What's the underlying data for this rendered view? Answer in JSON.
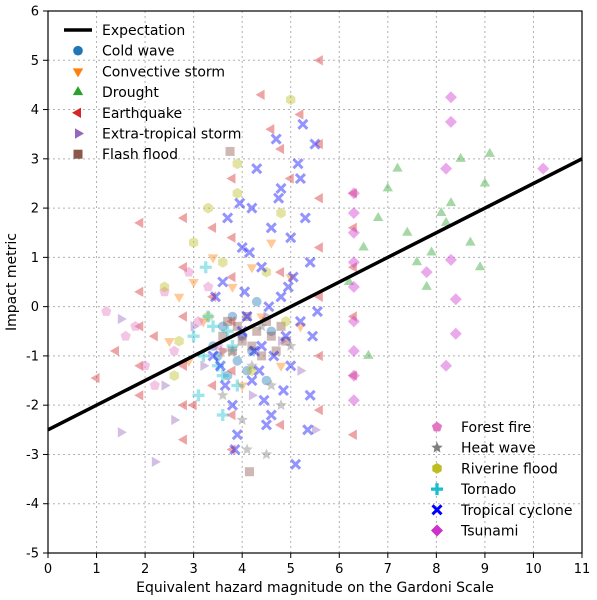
{
  "chart_data": {
    "type": "scatter",
    "xlabel": "Equivalent hazard magnitude on the Gardoni Scale",
    "ylabel": "Impact metric",
    "xlim": [
      0,
      11
    ],
    "ylim": [
      -5,
      6
    ],
    "xticks": [
      "0",
      "1",
      "2",
      "3",
      "4",
      "5",
      "6",
      "7",
      "8",
      "9",
      "10",
      "11"
    ],
    "yticks": [
      "-5",
      "-4",
      "-3",
      "-2",
      "-1",
      "0",
      "1",
      "2",
      "3",
      "4",
      "5",
      "6"
    ],
    "grid": true,
    "expectation_line": {
      "name": "Expectation",
      "color": "#000000",
      "x": [
        0,
        11
      ],
      "y": [
        -2.5,
        3.0
      ]
    },
    "legend_top_left": [
      {
        "name": "Expectation",
        "marker": "line",
        "color": "#000000"
      },
      {
        "name": "Cold wave",
        "marker": "circle",
        "color": "#1f77b4"
      },
      {
        "name": "Convective storm",
        "marker": "triangle-down",
        "color": "#ff7f0e"
      },
      {
        "name": "Drought",
        "marker": "triangle-up",
        "color": "#2ca02c"
      },
      {
        "name": "Earthquake",
        "marker": "triangle-left",
        "color": "#d62728"
      },
      {
        "name": "Extra-tropical storm",
        "marker": "triangle-right",
        "color": "#9467bd"
      },
      {
        "name": "Flash flood",
        "marker": "square",
        "color": "#8c564b"
      }
    ],
    "legend_bottom_right": [
      {
        "name": "Forest fire",
        "marker": "pentagon",
        "color": "#e377c2"
      },
      {
        "name": "Heat wave",
        "marker": "star",
        "color": "#7f7f7f"
      },
      {
        "name": "Riverine flood",
        "marker": "hexagon",
        "color": "#bcbd22"
      },
      {
        "name": "Tornado",
        "marker": "plus",
        "color": "#17becf"
      },
      {
        "name": "Tropical cyclone",
        "marker": "x",
        "color": "#0000ff"
      },
      {
        "name": "Tsunami",
        "marker": "diamond",
        "color": "#cc33cc"
      }
    ],
    "series": [
      {
        "name": "Cold wave",
        "color": "#1f77b4",
        "marker": "circle",
        "x": [
          3.4,
          3.5,
          3.6,
          3.7,
          3.8,
          3.9,
          4.0,
          4.1,
          4.2,
          4.3,
          4.5,
          4.6
        ],
        "y": [
          -0.8,
          -1.0,
          -0.4,
          -1.4,
          -0.2,
          -1.1,
          -0.6,
          -1.3,
          -0.9,
          0.1,
          -1.5,
          -0.5
        ]
      },
      {
        "name": "Convective storm",
        "color": "#ff7f0e",
        "marker": "triangle-down",
        "x": [
          2.5,
          2.7,
          2.9,
          3.0,
          3.2,
          3.4,
          3.6,
          3.8,
          4.0,
          4.2,
          4.4,
          4.6,
          4.8,
          5.0,
          5.2
        ],
        "y": [
          -0.7,
          0.2,
          -1.1,
          0.5,
          -0.3,
          1.0,
          -0.9,
          0.4,
          -1.6,
          0.8,
          -0.2,
          1.3,
          -1.2,
          0.6,
          -0.4
        ]
      },
      {
        "name": "Drought",
        "color": "#2ca02c",
        "marker": "triangle-up",
        "x": [
          6.2,
          6.5,
          6.8,
          7.0,
          7.2,
          7.4,
          7.6,
          7.9,
          8.1,
          8.3,
          8.5,
          8.7,
          8.9,
          9.0,
          9.1,
          6.6,
          7.8,
          8.2
        ],
        "y": [
          0.5,
          1.2,
          1.8,
          2.4,
          2.8,
          1.5,
          0.9,
          1.1,
          1.9,
          2.1,
          3.0,
          1.3,
          0.8,
          2.5,
          3.1,
          -1.0,
          0.4,
          1.7
        ]
      },
      {
        "name": "Earthquake",
        "color": "#d62728",
        "marker": "triangle-left",
        "x": [
          1.0,
          1.4,
          1.9,
          1.9,
          1.9,
          1.9,
          1.9,
          2.8,
          2.8,
          2.8,
          2.8,
          2.8,
          2.8,
          3.4,
          3.4,
          3.4,
          3.8,
          3.8,
          3.8,
          3.8,
          3.8,
          3.8,
          3.8,
          4.8,
          4.8,
          4.8,
          5.2,
          5.6,
          5.6,
          5.6,
          5.6,
          5.6,
          5.6,
          5.6,
          4.4,
          4.6,
          5.0,
          3.0,
          2.2,
          6.3,
          6.3,
          6.3,
          6.3,
          6.3,
          6.3
        ],
        "y": [
          -1.45,
          -0.9,
          -1.8,
          -1.2,
          -0.4,
          0.3,
          1.7,
          -2.7,
          -2.0,
          -1.2,
          -0.2,
          0.8,
          1.8,
          -1.6,
          0.2,
          1.6,
          -2.9,
          -2.2,
          -1.3,
          -0.3,
          0.6,
          1.4,
          2.6,
          -2.4,
          0.7,
          3.2,
          3.9,
          -2.1,
          -1.0,
          0.2,
          1.2,
          2.2,
          3.3,
          5.0,
          4.3,
          3.6,
          2.6,
          -2.0,
          -0.6,
          -2.6,
          -1.4,
          -0.2,
          0.8,
          1.6,
          2.3
        ]
      },
      {
        "name": "Extra-tropical storm",
        "color": "#9467bd",
        "marker": "triangle-right",
        "x": [
          1.5,
          1.5,
          2.2,
          2.4,
          2.6,
          3.0,
          3.2,
          3.6,
          4.0,
          4.2,
          4.5,
          4.8,
          5.2,
          5.5
        ],
        "y": [
          -0.25,
          -2.55,
          -3.15,
          -1.6,
          -2.3,
          -0.4,
          -1.2,
          -0.9,
          -0.6,
          -1.8,
          -0.2,
          -0.7,
          -1.3,
          -2.5
        ]
      },
      {
        "name": "Flash flood",
        "color": "#8c564b",
        "marker": "square",
        "x": [
          3.6,
          3.7,
          3.8,
          3.9,
          4.0,
          4.1,
          4.2,
          4.3,
          4.4,
          4.5,
          4.6,
          4.7,
          4.8,
          4.9,
          3.75,
          4.15
        ],
        "y": [
          -0.6,
          -0.3,
          -0.9,
          -0.4,
          -0.7,
          -0.2,
          -0.8,
          -0.5,
          -1.0,
          -0.3,
          -0.6,
          -0.9,
          -0.4,
          -0.7,
          3.15,
          -3.35
        ]
      },
      {
        "name": "Forest fire",
        "color": "#e377c2",
        "marker": "pentagon",
        "x": [
          1.2,
          1.6,
          2.0,
          2.4,
          2.6,
          2.9,
          3.1,
          3.3,
          3.5,
          2.2,
          1.8
        ],
        "y": [
          -0.1,
          -0.6,
          -1.2,
          0.3,
          -0.9,
          0.7,
          -0.3,
          0.4,
          -0.8,
          -1.6,
          -0.4
        ]
      },
      {
        "name": "Heat wave",
        "color": "#7f7f7f",
        "marker": "star",
        "x": [
          3.6,
          3.8,
          4.0,
          4.2,
          4.4,
          4.6,
          4.8,
          5.0,
          4.1,
          4.5
        ],
        "y": [
          -1.8,
          -0.9,
          -2.3,
          -1.2,
          -0.4,
          -1.6,
          -2.0,
          -0.8,
          -2.9,
          -3.0
        ]
      },
      {
        "name": "Riverine flood",
        "color": "#bcbd22",
        "marker": "hexagon",
        "x": [
          2.4,
          2.7,
          3.0,
          3.3,
          3.6,
          3.9,
          4.2,
          4.5,
          4.8,
          5.0,
          3.3,
          4.9,
          2.6,
          3.9
        ],
        "y": [
          0.4,
          -0.7,
          1.3,
          -0.2,
          0.9,
          2.3,
          -1.3,
          0.7,
          1.9,
          4.2,
          2.0,
          -0.3,
          -1.4,
          2.9
        ]
      },
      {
        "name": "Tornado",
        "color": "#17becf",
        "marker": "plus",
        "x": [
          3.0,
          3.2,
          3.4,
          3.6,
          3.8,
          3.1,
          3.3,
          3.5,
          3.7,
          3.9,
          3.25,
          3.6
        ],
        "y": [
          -0.6,
          -1.0,
          -0.4,
          -1.4,
          -0.8,
          -1.8,
          -0.2,
          -1.2,
          -0.5,
          -1.6,
          0.8,
          -2.2
        ]
      },
      {
        "name": "Tropical cyclone",
        "color": "#0000ff",
        "marker": "x",
        "x": [
          3.4,
          3.6,
          3.8,
          4.0,
          4.0,
          4.2,
          4.2,
          4.4,
          4.4,
          4.6,
          4.6,
          4.8,
          4.8,
          5.0,
          5.0,
          5.2,
          5.2,
          5.4,
          5.4,
          5.5,
          3.9,
          4.5,
          5.1,
          4.3,
          4.7,
          5.3,
          3.7,
          4.1,
          4.9,
          5.45,
          4.05,
          4.65,
          5.05,
          4.35,
          3.85,
          4.75,
          5.25,
          4.55,
          3.65,
          5.35,
          4.25,
          4.85,
          3.95,
          4.15,
          5.15,
          4.45,
          5.55,
          4.95,
          3.55,
          3.45
        ],
        "y": [
          -1.0,
          0.5,
          -2.0,
          1.2,
          -0.5,
          2.0,
          -1.5,
          0.8,
          -0.8,
          1.6,
          -2.2,
          2.4,
          0.2,
          -1.2,
          1.4,
          -0.3,
          2.6,
          -1.8,
          0.9,
          3.3,
          -2.6,
          -2.4,
          -3.2,
          2.8,
          3.4,
          1.8,
          1.8,
          -0.2,
          -0.6,
          -0.6,
          0.3,
          -1.0,
          0.6,
          -1.3,
          -2.9,
          2.2,
          3.7,
          0.0,
          -1.6,
          -2.5,
          -0.9,
          -1.7,
          2.1,
          1.1,
          2.9,
          -1.9,
          -0.1,
          0.4,
          -1.2,
          0.2
        ]
      },
      {
        "name": "Tsunami",
        "color": "#cc33cc",
        "marker": "diamond",
        "x": [
          6.3,
          6.3,
          6.3,
          6.3,
          6.3,
          6.3,
          6.3,
          6.3,
          6.3,
          7.8,
          8.2,
          8.3,
          8.3,
          8.3,
          8.4,
          8.4,
          10.2,
          8.2
        ],
        "y": [
          2.3,
          1.5,
          0.9,
          0.4,
          -0.3,
          -0.9,
          -1.4,
          -1.9,
          1.9,
          0.7,
          2.8,
          4.25,
          3.75,
          0.95,
          0.15,
          -0.55,
          2.8,
          -1.2
        ]
      }
    ]
  }
}
